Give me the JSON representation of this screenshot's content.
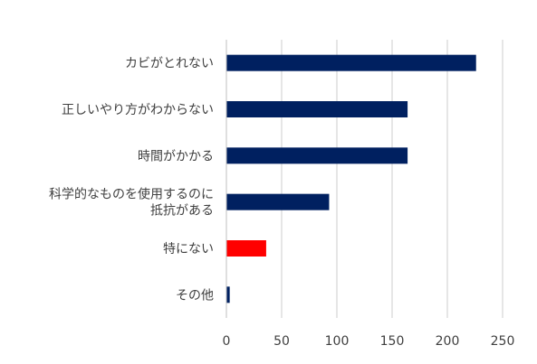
{
  "chart_data": {
    "type": "bar",
    "orientation": "horizontal",
    "categories": [
      [
        "カビがとれない"
      ],
      [
        "正しいやり方がわからない"
      ],
      [
        "時間がかかる"
      ],
      [
        "科学的なものを使用するのに",
        "抵抗がある"
      ],
      [
        "特にない"
      ],
      [
        "その他"
      ]
    ],
    "values": [
      226,
      164,
      164,
      93,
      36,
      3
    ],
    "colors": [
      "#002060",
      "#002060",
      "#002060",
      "#002060",
      "#ff0000",
      "#002060"
    ],
    "xlim": [
      0,
      250
    ],
    "xticks": [
      "0",
      "50",
      "100",
      "150",
      "200",
      "250"
    ],
    "grid": true,
    "legend": "none"
  }
}
